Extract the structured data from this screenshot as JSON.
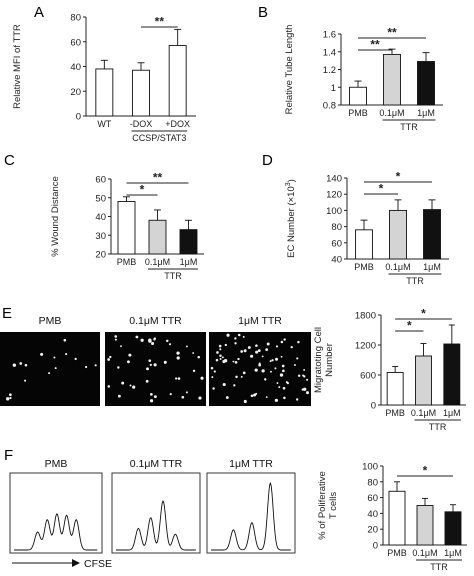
{
  "panels": [
    {
      "letter": "A"
    },
    {
      "letter": "B"
    },
    {
      "letter": "C"
    },
    {
      "letter": "D"
    },
    {
      "letter": "E"
    },
    {
      "letter": "F"
    }
  ],
  "chart_data": [
    {
      "panel": "A",
      "type": "bar",
      "categories": [
        "WT",
        "-DOX",
        "+DOX"
      ],
      "group_label": "CCSP/STAT3",
      "group_spans": [
        [
          1,
          2
        ]
      ],
      "values": [
        38,
        37,
        57
      ],
      "errors": [
        7,
        6,
        13
      ],
      "fills": [
        "#ffffff",
        "#ffffff",
        "#ffffff"
      ],
      "ylabel": "Relative MFI of TTR",
      "ylim": [
        0,
        80
      ],
      "yticks": [
        "0",
        "20",
        "40",
        "60",
        "80"
      ],
      "significance": [
        {
          "from": 1,
          "to": 2,
          "label": "**"
        }
      ]
    },
    {
      "panel": "B",
      "type": "bar",
      "categories": [
        "PMB",
        "0.1μM",
        "1μM"
      ],
      "group_label": "TTR",
      "group_spans": [
        [
          1,
          2
        ]
      ],
      "values": [
        1.0,
        1.37,
        1.29
      ],
      "errors": [
        0.07,
        0.06,
        0.1
      ],
      "fills": [
        "#ffffff",
        "#d4d4d4",
        "#111111"
      ],
      "ylabel": "Relative Tube Length",
      "ylim": [
        0.8,
        1.6
      ],
      "yticks": [
        "0.8",
        "1",
        "1.2",
        "1.4",
        "1.6"
      ],
      "significance": [
        {
          "from": 0,
          "to": 1,
          "label": "**"
        },
        {
          "from": 0,
          "to": 2,
          "label": "**"
        }
      ]
    },
    {
      "panel": "C",
      "type": "bar",
      "categories": [
        "PMB",
        "0.1μM",
        "1μM"
      ],
      "group_label": "TTR",
      "group_spans": [
        [
          1,
          2
        ]
      ],
      "values": [
        48,
        38,
        33
      ],
      "errors": [
        2.5,
        5.5,
        5
      ],
      "fills": [
        "#ffffff",
        "#d4d4d4",
        "#111111"
      ],
      "ylabel": "% Wound Distance",
      "ylim": [
        20,
        60
      ],
      "yticks": [
        "20",
        "30",
        "40",
        "50",
        "60"
      ],
      "significance": [
        {
          "from": 0,
          "to": 1,
          "label": "*"
        },
        {
          "from": 0,
          "to": 2,
          "label": "**"
        }
      ]
    },
    {
      "panel": "D",
      "type": "bar",
      "categories": [
        "PMB",
        "0.1μM",
        "1μM"
      ],
      "group_label": "TTR",
      "group_spans": [
        [
          1,
          2
        ]
      ],
      "values": [
        76,
        100,
        101
      ],
      "errors": [
        12,
        13,
        12
      ],
      "fills": [
        "#ffffff",
        "#d4d4d4",
        "#111111"
      ],
      "ylabel_parts": [
        "EC Number (×10",
        "3",
        ")"
      ],
      "ylim": [
        40,
        140
      ],
      "yticks": [
        "40",
        "60",
        "80",
        "100",
        "120",
        "140"
      ],
      "significance": [
        {
          "from": 0,
          "to": 1,
          "label": "*"
        },
        {
          "from": 0,
          "to": 2,
          "label": "*"
        }
      ]
    },
    {
      "panel": "E",
      "type": "bar",
      "categories": [
        "PMB",
        "0.1μM",
        "1μM"
      ],
      "group_label": "TTR",
      "group_spans": [
        [
          1,
          2
        ]
      ],
      "values": [
        650,
        980,
        1220
      ],
      "errors": [
        120,
        250,
        380
      ],
      "fills": [
        "#ffffff",
        "#d4d4d4",
        "#111111"
      ],
      "ylabel": "Migratoting Cell Number",
      "ylim": [
        0,
        1800
      ],
      "yticks": [
        "0",
        "600",
        "1200",
        "1800"
      ],
      "significance": [
        {
          "from": 0,
          "to": 1,
          "label": "*"
        },
        {
          "from": 0,
          "to": 2,
          "label": "*"
        }
      ]
    },
    {
      "panel": "F",
      "type": "bar",
      "categories": [
        "PMB",
        "0.1μM",
        "1μM"
      ],
      "group_label": "TTR",
      "group_spans": [
        [
          1,
          2
        ]
      ],
      "values": [
        68,
        50,
        42
      ],
      "errors": [
        12,
        9,
        9
      ],
      "fills": [
        "#ffffff",
        "#d4d4d4",
        "#111111"
      ],
      "ylabel": "% of Poliferative T cells",
      "ylim": [
        0,
        100
      ],
      "yticks": [
        "0",
        "20",
        "40",
        "60",
        "80",
        "100"
      ],
      "significance": [
        {
          "from": 0,
          "to": 2,
          "label": "*"
        }
      ]
    }
  ],
  "micrographs": {
    "labels": [
      "PMB",
      "0.1μM TTR",
      "1μM TTR"
    ],
    "cell_density": [
      "low",
      "medium",
      "high"
    ],
    "background": "#050505",
    "dot_color": "#f2f2f2"
  },
  "histograms": {
    "labels": [
      "PMB",
      "0.1μM TTR",
      "1μM TTR"
    ],
    "axis_label": "CFSE",
    "peak_heights": [
      [
        0.25,
        0.42,
        0.5,
        0.48,
        0.42
      ],
      [
        0.3,
        0.45,
        0.68,
        0.22
      ],
      [
        0.28,
        0.38,
        0.93
      ]
    ]
  }
}
